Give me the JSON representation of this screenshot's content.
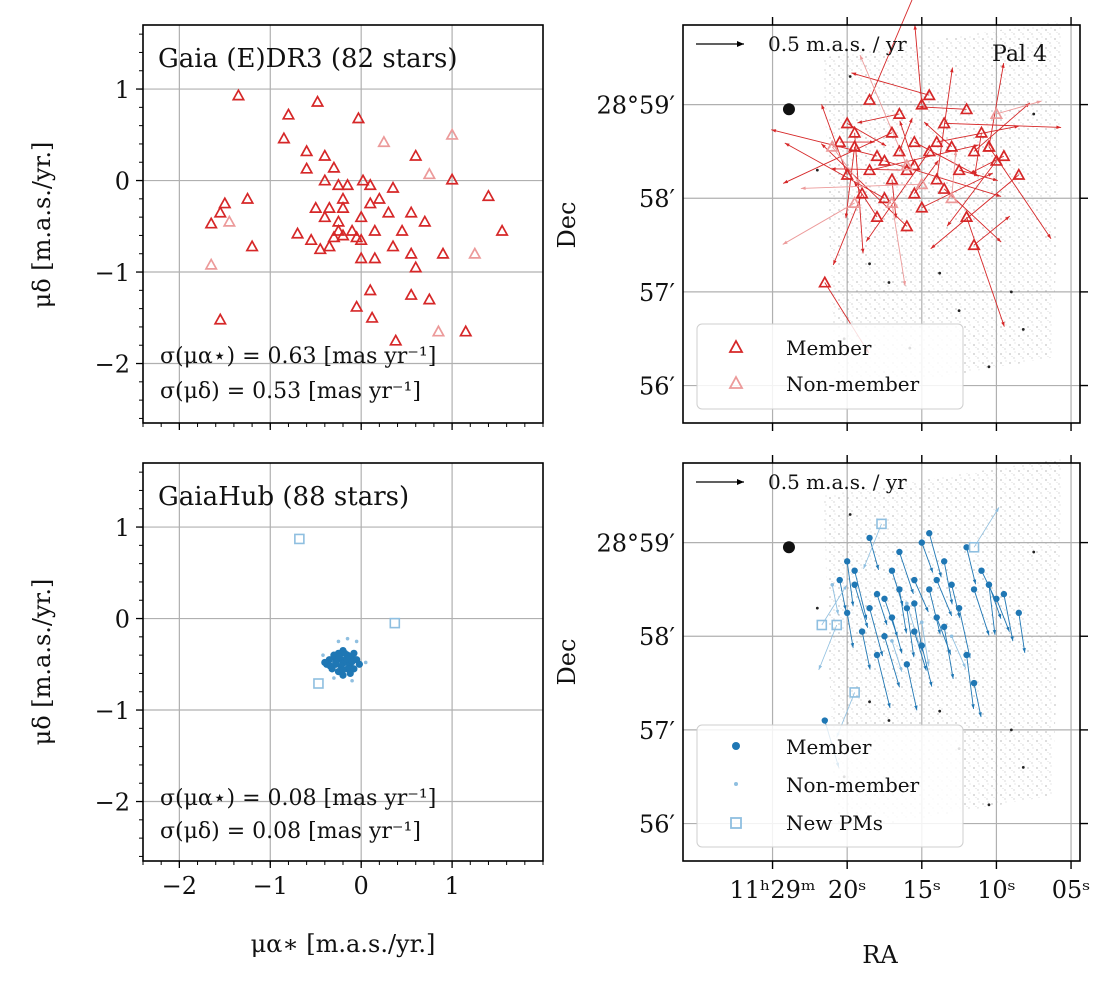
{
  "colors": {
    "red": "#d62728",
    "red_light": "#ec9a9a",
    "blue": "#1f77b4",
    "blue_light": "#8fbfe0",
    "grid": "#b0b0b0"
  },
  "chart_data": [
    {
      "id": "pm_gaia",
      "type": "scatter",
      "title": "Gaia (E)DR3 (82 stars)",
      "xlabel": "",
      "ylabel": "μδ [m.a.s./yr.]",
      "xlim": [
        -2.4,
        2.0
      ],
      "ylim": [
        -2.65,
        1.7
      ],
      "xticks": [
        -2,
        -1,
        0,
        1
      ],
      "yticks": [
        -2,
        -1,
        0,
        1
      ],
      "xtick_labels": [
        "",
        "",
        "",
        ""
      ],
      "ytick_labels": [
        "−2",
        "−1",
        "0",
        "1"
      ],
      "annotations": [
        "σ(μα⋆) = 0.63 [mas yr⁻¹]",
        "σ(μδ) = 0.53 [mas yr⁻¹]"
      ],
      "series": [
        {
          "name": "Member",
          "marker": "triangle",
          "color": "red",
          "points": [
            [
              -1.35,
              0.93
            ],
            [
              -0.48,
              0.86
            ],
            [
              -0.8,
              0.72
            ],
            [
              -0.03,
              0.68
            ],
            [
              -0.85,
              0.46
            ],
            [
              -0.6,
              0.32
            ],
            [
              -0.4,
              0.27
            ],
            [
              0.6,
              0.27
            ],
            [
              -0.6,
              0.13
            ],
            [
              -0.3,
              0.14
            ],
            [
              -0.4,
              0.0
            ],
            [
              0.02,
              0.0
            ],
            [
              1.0,
              0.01
            ],
            [
              -0.25,
              -0.05
            ],
            [
              -0.15,
              -0.05
            ],
            [
              0.1,
              -0.05
            ],
            [
              0.35,
              -0.08
            ],
            [
              -1.5,
              -0.25
            ],
            [
              -1.25,
              -0.2
            ],
            [
              -0.2,
              -0.2
            ],
            [
              0.2,
              -0.2
            ],
            [
              1.4,
              -0.17
            ],
            [
              -1.55,
              -0.35
            ],
            [
              -0.5,
              -0.3
            ],
            [
              -0.35,
              -0.3
            ],
            [
              -0.2,
              -0.3
            ],
            [
              0.1,
              -0.25
            ],
            [
              0.3,
              -0.35
            ],
            [
              0.55,
              -0.35
            ],
            [
              -1.65,
              -0.47
            ],
            [
              -0.4,
              -0.4
            ],
            [
              -0.25,
              -0.45
            ],
            [
              0.0,
              -0.4
            ],
            [
              0.7,
              -0.45
            ],
            [
              -0.1,
              -0.55
            ],
            [
              -0.2,
              -0.6
            ],
            [
              -0.25,
              -0.55
            ],
            [
              -0.05,
              -0.62
            ],
            [
              0.15,
              -0.55
            ],
            [
              0.45,
              -0.55
            ],
            [
              -0.7,
              -0.58
            ],
            [
              -0.55,
              -0.65
            ],
            [
              -0.3,
              -0.62
            ],
            [
              0.0,
              -0.65
            ],
            [
              1.55,
              -0.55
            ],
            [
              -1.2,
              -0.72
            ],
            [
              -0.45,
              -0.75
            ],
            [
              -0.35,
              -0.72
            ],
            [
              0.35,
              -0.72
            ],
            [
              0.15,
              -0.85
            ],
            [
              0.0,
              -0.85
            ],
            [
              0.55,
              -0.8
            ],
            [
              0.9,
              -0.8
            ],
            [
              0.6,
              -0.95
            ],
            [
              0.1,
              -1.2
            ],
            [
              0.55,
              -1.25
            ],
            [
              0.75,
              -1.3
            ],
            [
              -0.05,
              -1.38
            ],
            [
              -1.55,
              -1.52
            ],
            [
              0.12,
              -1.5
            ],
            [
              1.15,
              -1.65
            ],
            [
              0.38,
              -1.75
            ]
          ]
        },
        {
          "name": "Non-member",
          "marker": "triangle",
          "color": "red_light",
          "points": [
            [
              1.0,
              0.5
            ],
            [
              0.25,
              0.42
            ],
            [
              0.75,
              0.07
            ],
            [
              -1.65,
              -0.92
            ],
            [
              1.25,
              -0.8
            ],
            [
              0.85,
              -1.65
            ],
            [
              -1.45,
              -0.45
            ]
          ]
        }
      ]
    },
    {
      "id": "sky_gaia",
      "type": "scatter",
      "xlabel": "",
      "ylabel": "Dec",
      "field_label": "Pal 4",
      "scale_label": "0.5 m.a.s. / yr",
      "xlim": [
        31.0,
        4.4
      ],
      "ylim": [
        55.6,
        59.85
      ],
      "ra_ticks": [
        25,
        20,
        15,
        10,
        5
      ],
      "ra_tick_labels": [
        "",
        "",
        "",
        "",
        ""
      ],
      "dec_ticks": [
        56,
        57,
        58,
        59
      ],
      "dec_tick_labels": [
        "56′",
        "57′",
        "58′",
        "28°59′"
      ],
      "legend": [
        "Member",
        "Non-member"
      ],
      "legend_position": "lower-left",
      "units": {
        "x": "ra_seconds_of_11h29m",
        "y": "dec_arcmin_of_28deg"
      },
      "series": [
        {
          "name": "Member",
          "marker": "triangle",
          "color": "red",
          "points": [
            [
              20.5,
              58.6
            ],
            [
              19.5,
              58.55
            ],
            [
              18.0,
              58.45
            ],
            [
              16.5,
              58.5
            ],
            [
              15.5,
              58.6
            ],
            [
              14.5,
              58.5
            ],
            [
              13.0,
              58.55
            ],
            [
              11.5,
              58.5
            ],
            [
              10.5,
              58.55
            ],
            [
              9.5,
              58.45
            ],
            [
              20.0,
              58.25
            ],
            [
              18.5,
              58.3
            ],
            [
              17.0,
              58.2
            ],
            [
              16.0,
              58.3
            ],
            [
              14.0,
              58.2
            ],
            [
              12.5,
              58.3
            ],
            [
              19.0,
              58.05
            ],
            [
              17.5,
              58.0
            ],
            [
              15.5,
              58.05
            ],
            [
              13.5,
              58.1
            ],
            [
              8.5,
              58.25
            ],
            [
              18.0,
              57.8
            ],
            [
              15.0,
              57.9
            ],
            [
              12.0,
              57.8
            ],
            [
              16.5,
              58.9
            ],
            [
              15.0,
              59.0
            ],
            [
              13.5,
              58.8
            ],
            [
              11.0,
              58.7
            ],
            [
              14.5,
              59.1
            ],
            [
              18.5,
              59.05
            ],
            [
              20.0,
              58.8
            ],
            [
              10.0,
              58.4
            ],
            [
              16.0,
              57.7
            ],
            [
              11.5,
              57.5
            ],
            [
              21.5,
              57.1
            ],
            [
              17.0,
              58.7
            ],
            [
              15.5,
              58.35
            ],
            [
              14.0,
              58.6
            ],
            [
              19.5,
              58.7
            ],
            [
              12.0,
              58.95
            ],
            [
              10.5,
              58.55
            ],
            [
              17.5,
              58.4
            ]
          ]
        },
        {
          "name": "Non-member",
          "marker": "triangle",
          "color": "red_light",
          "points": [
            [
              21.0,
              58.55
            ],
            [
              19.5,
              57.95
            ],
            [
              16.0,
              58.35
            ],
            [
              10.0,
              58.9
            ],
            [
              17.0,
              57.95
            ],
            [
              15.0,
              58.15
            ],
            [
              13.0,
              58.0
            ]
          ]
        }
      ]
    },
    {
      "id": "pm_hub",
      "type": "scatter",
      "title": "GaiaHub (88 stars)",
      "xlabel": "μα∗ [m.a.s./yr.]",
      "ylabel": "μδ [m.a.s./yr.]",
      "xlim": [
        -2.4,
        2.0
      ],
      "ylim": [
        -2.65,
        1.7
      ],
      "xticks": [
        -2,
        -1,
        0,
        1
      ],
      "yticks": [
        -2,
        -1,
        0,
        1
      ],
      "xtick_labels": [
        "−2",
        "−1",
        "0",
        "1"
      ],
      "ytick_labels": [
        "−2",
        "−1",
        "0",
        "1"
      ],
      "annotations": [
        "σ(μα⋆) = 0.08 [mas yr⁻¹]",
        "σ(μδ) = 0.08 [mas yr⁻¹]"
      ],
      "series": [
        {
          "name": "Member",
          "marker": "dot",
          "color": "blue",
          "points": [
            [
              -0.2,
              -0.35
            ],
            [
              -0.25,
              -0.38
            ],
            [
              -0.15,
              -0.4
            ],
            [
              -0.3,
              -0.42
            ],
            [
              -0.1,
              -0.42
            ],
            [
              -0.22,
              -0.45
            ],
            [
              -0.35,
              -0.45
            ],
            [
              -0.05,
              -0.45
            ],
            [
              -0.18,
              -0.48
            ],
            [
              -0.28,
              -0.5
            ],
            [
              -0.12,
              -0.5
            ],
            [
              -0.38,
              -0.5
            ],
            [
              -0.02,
              -0.5
            ],
            [
              -0.22,
              -0.52
            ],
            [
              -0.32,
              -0.55
            ],
            [
              -0.15,
              -0.55
            ],
            [
              -0.08,
              -0.55
            ],
            [
              -0.25,
              -0.58
            ],
            [
              -0.12,
              -0.6
            ],
            [
              -0.2,
              -0.62
            ],
            [
              -0.3,
              -0.4
            ],
            [
              -0.18,
              -0.38
            ],
            [
              -0.08,
              -0.38
            ],
            [
              -0.28,
              -0.48
            ],
            [
              -0.4,
              -0.48
            ],
            [
              -0.16,
              -0.44
            ],
            [
              -0.24,
              -0.42
            ],
            [
              -0.1,
              -0.47
            ],
            [
              -0.34,
              -0.52
            ],
            [
              -0.2,
              -0.56
            ]
          ]
        },
        {
          "name": "Non-member",
          "marker": "smalldot",
          "color": "blue_light",
          "points": [
            [
              -0.15,
              -0.22
            ],
            [
              -0.05,
              -0.25
            ],
            [
              -0.42,
              -0.4
            ],
            [
              -0.1,
              -0.68
            ],
            [
              0.05,
              -0.48
            ],
            [
              -0.3,
              -0.65
            ],
            [
              -0.25,
              -0.25
            ]
          ]
        },
        {
          "name": "New PMs",
          "marker": "square",
          "color": "blue_light",
          "points": [
            [
              -0.68,
              0.87
            ],
            [
              0.37,
              -0.05
            ],
            [
              -0.47,
              -0.71
            ]
          ]
        }
      ]
    },
    {
      "id": "sky_hub",
      "type": "scatter",
      "xlabel": "RA",
      "ylabel": "Dec",
      "scale_label": "0.5 m.a.s. / yr",
      "xlim": [
        31.0,
        4.4
      ],
      "ylim": [
        55.6,
        59.85
      ],
      "ra_ticks": [
        25,
        20,
        15,
        10,
        5
      ],
      "ra_tick_labels": [
        "11ʰ29ᵐ",
        "20ˢ",
        "15ˢ",
        "10ˢ",
        "05ˢ"
      ],
      "dec_ticks": [
        56,
        57,
        58,
        59
      ],
      "dec_tick_labels": [
        "56′",
        "57′",
        "58′",
        "28°59′"
      ],
      "legend": [
        "Member",
        "Non-member",
        "New PMs"
      ],
      "legend_position": "lower-left",
      "units": {
        "x": "ra_seconds_of_11h29m",
        "y": "dec_arcmin_of_28deg"
      },
      "series": [
        {
          "name": "Member",
          "marker": "dot",
          "color": "blue",
          "points": [
            [
              20.5,
              58.6
            ],
            [
              19.5,
              58.55
            ],
            [
              18.0,
              58.45
            ],
            [
              16.5,
              58.5
            ],
            [
              15.5,
              58.6
            ],
            [
              14.5,
              58.5
            ],
            [
              13.0,
              58.55
            ],
            [
              11.5,
              58.5
            ],
            [
              10.5,
              58.55
            ],
            [
              9.5,
              58.45
            ],
            [
              20.0,
              58.25
            ],
            [
              18.5,
              58.3
            ],
            [
              17.0,
              58.2
            ],
            [
              16.0,
              58.3
            ],
            [
              14.0,
              58.2
            ],
            [
              12.5,
              58.3
            ],
            [
              19.0,
              58.05
            ],
            [
              17.5,
              58.0
            ],
            [
              15.5,
              58.05
            ],
            [
              13.5,
              58.1
            ],
            [
              8.5,
              58.25
            ],
            [
              18.0,
              57.8
            ],
            [
              15.0,
              57.9
            ],
            [
              12.0,
              57.8
            ],
            [
              16.5,
              58.9
            ],
            [
              15.0,
              59.0
            ],
            [
              13.5,
              58.8
            ],
            [
              11.0,
              58.7
            ],
            [
              14.5,
              59.1
            ],
            [
              18.5,
              59.05
            ],
            [
              20.0,
              58.8
            ],
            [
              10.0,
              58.4
            ],
            [
              16.0,
              57.7
            ],
            [
              11.5,
              57.5
            ],
            [
              21.5,
              57.1
            ],
            [
              17.0,
              58.7
            ],
            [
              15.5,
              58.35
            ],
            [
              14.0,
              58.6
            ],
            [
              19.5,
              58.7
            ],
            [
              12.0,
              58.95
            ],
            [
              10.5,
              58.55
            ],
            [
              17.5,
              58.4
            ]
          ]
        },
        {
          "name": "Non-member",
          "marker": "smalldot",
          "color": "blue_light",
          "points": [
            [
              21.0,
              58.55
            ],
            [
              16.0,
              58.35
            ],
            [
              17.0,
              57.95
            ],
            [
              15.0,
              58.15
            ],
            [
              13.0,
              58.0
            ]
          ]
        },
        {
          "name": "New PMs",
          "marker": "square",
          "color": "blue_light",
          "points": [
            [
              17.7,
              59.2
            ],
            [
              11.5,
              58.95
            ],
            [
              20.7,
              58.12
            ],
            [
              21.7,
              58.12
            ],
            [
              19.5,
              57.4
            ]
          ]
        }
      ]
    }
  ]
}
